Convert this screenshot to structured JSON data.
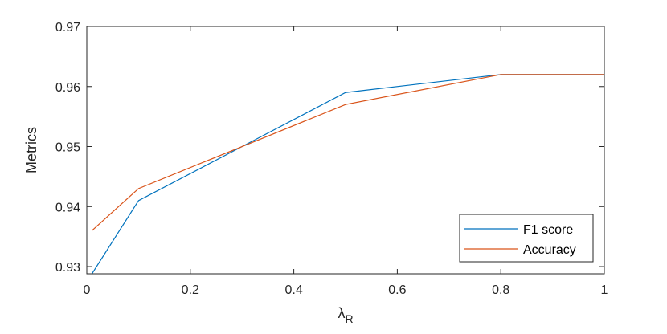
{
  "chart_data": {
    "type": "line",
    "title": "",
    "xlabel": "λ",
    "xlabel_subscript": "R",
    "ylabel": "Metrics",
    "xlim": [
      0,
      1
    ],
    "ylim": [
      0.9288,
      0.97
    ],
    "xticks": [
      0,
      0.2,
      0.4,
      0.6,
      0.8,
      1
    ],
    "xtick_labels": [
      "0",
      "0.2",
      "0.4",
      "0.6",
      "0.8",
      "1"
    ],
    "yticks": [
      0.93,
      0.94,
      0.95,
      0.96,
      0.97
    ],
    "ytick_labels": [
      "0.93",
      "0.94",
      "0.95",
      "0.96",
      "0.97"
    ],
    "grid": false,
    "legend_position": "bottom-right",
    "series": [
      {
        "name": "F1 score",
        "color": "#0072BD",
        "x": [
          0.01,
          0.1,
          0.3,
          0.5,
          0.8,
          1.0
        ],
        "y": [
          0.9288,
          0.941,
          0.95,
          0.959,
          0.962,
          0.962
        ]
      },
      {
        "name": "Accuracy",
        "color": "#D95319",
        "x": [
          0.01,
          0.1,
          0.3,
          0.5,
          0.8,
          1.0
        ],
        "y": [
          0.936,
          0.943,
          0.95,
          0.957,
          0.962,
          0.962
        ]
      }
    ]
  }
}
